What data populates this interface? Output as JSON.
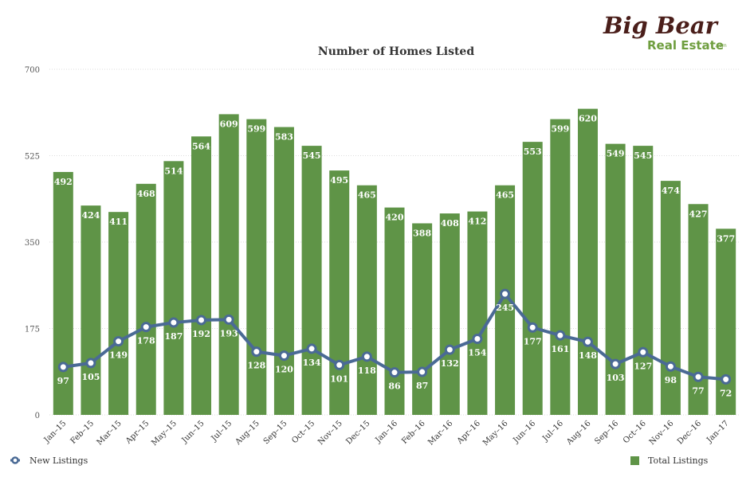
{
  "logo": {
    "line1": "Big Bear",
    "line2": "Real Estate",
    "line3": ".com"
  },
  "chart_data": {
    "type": "bar",
    "title": "Number of Homes Listed",
    "categories": [
      "Jan–15",
      "Feb–15",
      "Mar–15",
      "Apr–15",
      "May–15",
      "Jun–15",
      "Jul–15",
      "Aug–15",
      "Sep–15",
      "Oct–15",
      "Nov–15",
      "Dec–15",
      "Jan–16",
      "Feb–16",
      "Mar–16",
      "Apr–16",
      "May–16",
      "Jun–16",
      "Jul–16",
      "Aug–16",
      "Sep–16",
      "Oct–16",
      "Nov–16",
      "Dec–16",
      "Jan–17"
    ],
    "series": [
      {
        "name": "Total Listings",
        "type": "bar",
        "color": "#5f9447",
        "values": [
          492,
          424,
          411,
          468,
          514,
          564,
          609,
          599,
          583,
          545,
          495,
          465,
          420,
          388,
          408,
          412,
          465,
          553,
          599,
          620,
          549,
          545,
          474,
          427,
          377
        ]
      },
      {
        "name": "New Listings",
        "type": "line",
        "color": "#4a6a95",
        "values": [
          97,
          105,
          149,
          178,
          187,
          192,
          193,
          128,
          120,
          134,
          101,
          118,
          86,
          87,
          132,
          154,
          245,
          177,
          161,
          148,
          103,
          127,
          98,
          77,
          72
        ]
      }
    ],
    "yticks": [
      "0",
      "175",
      "350",
      "525",
      "700"
    ],
    "ylim": [
      0,
      700
    ],
    "grid": true,
    "legend_position": "bottom"
  }
}
